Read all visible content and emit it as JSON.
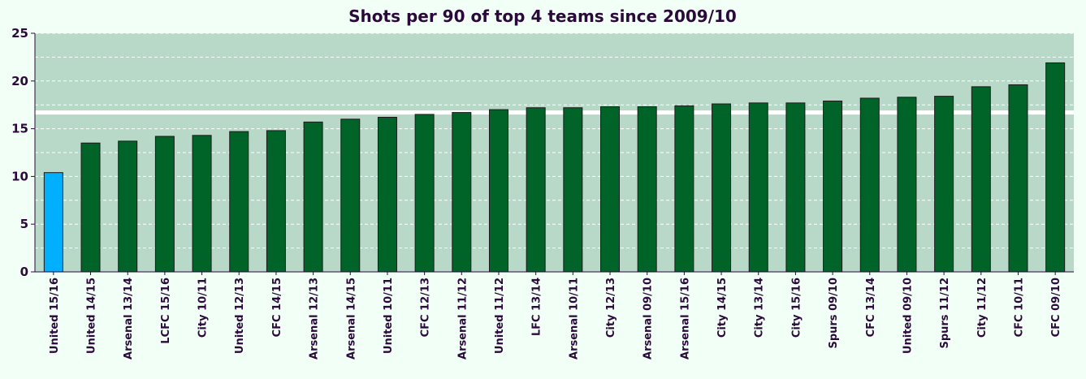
{
  "chart_data": {
    "type": "bar",
    "title": "Shots per 90 of top 4 teams since 2009/10",
    "xlabel": "",
    "ylabel": "",
    "ylim": [
      0,
      25
    ],
    "yticks": [
      0,
      5,
      10,
      15,
      20,
      25
    ],
    "grid": true,
    "average_line": 16.7,
    "categories": [
      "United 15/16",
      "United 14/15",
      "Arsenal 13/14",
      "LCFC 15/16",
      "City 10/11",
      "United 12/13",
      "CFC 14/15",
      "Arsenal 12/13",
      "Arsenal 14/15",
      "United 10/11",
      "CFC 12/13",
      "Arsenal 11/12",
      "United 11/12",
      "LFC 13/14",
      "Arsenal 10/11",
      "City 12/13",
      "Arsenal 09/10",
      "Arsenal 15/16",
      "City 14/15",
      "City 13/14",
      "City 15/16",
      "Spurs 09/10",
      "CFC 13/14",
      "United 09/10",
      "Spurs 11/12",
      "City 11/12",
      "CFC 10/11",
      "CFC 09/10"
    ],
    "values": [
      10.4,
      13.5,
      13.7,
      14.2,
      14.3,
      14.7,
      14.8,
      15.7,
      16.0,
      16.2,
      16.5,
      16.7,
      17.0,
      17.2,
      17.2,
      17.3,
      17.3,
      17.4,
      17.6,
      17.7,
      17.7,
      17.9,
      18.2,
      18.3,
      18.4,
      19.4,
      19.6,
      21.9
    ],
    "highlight_index": 0,
    "colors": {
      "bar": "#006428",
      "highlight": "#00b0ff",
      "plot_bg": "#b8d8c8",
      "page_bg": "#f2fff7",
      "text": "#2a0a3a",
      "grid": "#ffffff"
    }
  }
}
